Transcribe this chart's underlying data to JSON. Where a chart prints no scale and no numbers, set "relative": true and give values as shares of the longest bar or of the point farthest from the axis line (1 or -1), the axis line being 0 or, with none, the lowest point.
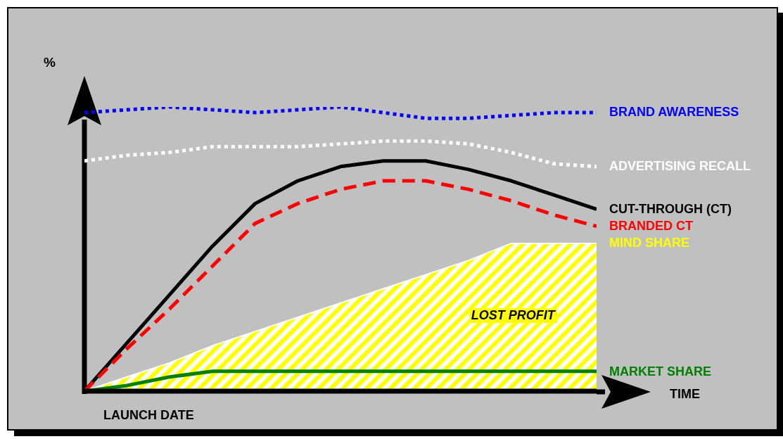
{
  "chart_data": {
    "type": "line",
    "relative": true,
    "ylabel": "%",
    "marker": "none",
    "annotations": [
      "LOST PROFIT",
      "LAUNCH DATE",
      "TIME"
    ],
    "categories": [
      null,
      null,
      null,
      null,
      null,
      null,
      null,
      null,
      null,
      null,
      null,
      null,
      null
    ],
    "series": [
      {
        "name": "BRAND AWARENESS",
        "color": "#0000ff",
        "line_style": "dotted",
        "values": [
          0.98,
          0.99,
          1.0,
          0.99,
          0.98,
          0.99,
          1.0,
          0.98,
          0.96,
          0.96,
          0.97,
          0.98,
          0.98
        ]
      },
      {
        "name": "ADVERTISING RECALL",
        "color": "#ffffff",
        "line_style": "dotted",
        "values": [
          0.81,
          0.83,
          0.84,
          0.86,
          0.86,
          0.86,
          0.87,
          0.88,
          0.88,
          0.87,
          0.84,
          0.8,
          0.79
        ]
      },
      {
        "name": "CUT-THROUGH (CT)",
        "color": "#000000",
        "line_style": "solid",
        "values": [
          0,
          0.17,
          0.34,
          0.51,
          0.66,
          0.74,
          0.79,
          0.81,
          0.81,
          0.78,
          0.74,
          0.69,
          0.64
        ]
      },
      {
        "name": "BRANDED CT",
        "color": "#ff0000",
        "line_style": "dashed",
        "values": [
          0,
          0.15,
          0.29,
          0.44,
          0.59,
          0.66,
          0.71,
          0.74,
          0.74,
          0.71,
          0.67,
          0.62,
          0.58
        ]
      },
      {
        "name": "MIND SHARE",
        "type": "area",
        "color": "#ffff00",
        "values": [
          0,
          0.05,
          0.1,
          0.16,
          0.21,
          0.26,
          0.31,
          0.36,
          0.41,
          0.46,
          0.52,
          0.52,
          0.52
        ]
      },
      {
        "name": "MARKET SHARE",
        "color": "#008000",
        "line_style": "solid",
        "values": [
          0,
          0.02,
          0.05,
          0.07,
          0.07,
          0.07,
          0.07,
          0.07,
          0.07,
          0.07,
          0.07,
          0.07,
          0.07
        ]
      }
    ]
  }
}
